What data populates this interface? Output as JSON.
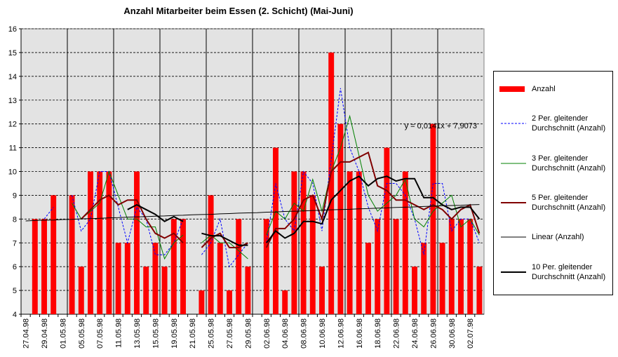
{
  "chart_data": {
    "type": "bar",
    "title": "Anzahl Mitarbeiter beim Essen (2. Schicht) (Mai-Juni)",
    "categories": [
      "27.04.98",
      null,
      "29.04.98",
      null,
      "01.05.98",
      null,
      "05.05.98",
      null,
      "07.05.98",
      null,
      "11.05.98",
      null,
      "13.05.98",
      null,
      "15.05.98",
      null,
      "19.05.98",
      null,
      "21.05.98",
      null,
      "25.05.98",
      null,
      "27.05.98",
      null,
      "29.05.98",
      null,
      "02.06.98",
      null,
      "04.06.98",
      null,
      "08.06.98",
      null,
      "10.06.98",
      null,
      "12.06.98",
      null,
      "16.06.98",
      null,
      "18.06.98",
      null,
      "22.06.98",
      null,
      "24.06.98",
      null,
      "26.06.98",
      null,
      "30.06.98",
      null,
      "02.07.98",
      null
    ],
    "ylim": [
      4,
      16
    ],
    "yticks": [
      4,
      5,
      6,
      7,
      8,
      9,
      10,
      11,
      12,
      13,
      14,
      15,
      16
    ],
    "grid": true,
    "x_grid_interval": 5,
    "annotation": "y = 0,0141x + 7,9073",
    "series": [
      {
        "name": "Anzahl",
        "type": "bar",
        "color": "#ff0000",
        "values": [
          null,
          8,
          8,
          9,
          null,
          9,
          6,
          10,
          10,
          10,
          7,
          7,
          10,
          6,
          7,
          6,
          8,
          8,
          null,
          5,
          9,
          7,
          5,
          8,
          6,
          null,
          8,
          11,
          5,
          10,
          10,
          9,
          6,
          15,
          12,
          10,
          10,
          7,
          8,
          11,
          8,
          10,
          6,
          7,
          12,
          7,
          8,
          8,
          8,
          6
        ]
      },
      {
        "name": "2 Per. gleitender Durchschnitt (Anzahl)",
        "type": "line",
        "dashed": true,
        "width": 1,
        "color": "#0000ff",
        "values": [
          null,
          null,
          8,
          8.5,
          null,
          9,
          7.5,
          8,
          10,
          10,
          8.5,
          7,
          8.5,
          8,
          6.5,
          6.5,
          7,
          8,
          null,
          6.5,
          7,
          8,
          6,
          6.5,
          7,
          null,
          7,
          9.5,
          8,
          7.5,
          10,
          9.5,
          7.5,
          10.5,
          13.5,
          11,
          10,
          8.5,
          7.5,
          9.5,
          9.5,
          9,
          8,
          6.5,
          9.5,
          9.5,
          7.5,
          8,
          8,
          7
        ]
      },
      {
        "name": "3 Per. gleitender Durchschnitt (Anzahl)",
        "type": "line",
        "dashed": false,
        "width": 1,
        "color": "#008000",
        "values": [
          null,
          null,
          null,
          8.33,
          null,
          8.67,
          8,
          8.33,
          8.67,
          10,
          9,
          8,
          8,
          7.67,
          7.67,
          6.33,
          7,
          7.33,
          null,
          7,
          7.33,
          7,
          7,
          6.67,
          6.33,
          null,
          7.33,
          8.33,
          8,
          8.67,
          8.33,
          9.67,
          8.33,
          10,
          11,
          12.33,
          10.67,
          9,
          8.33,
          8.67,
          9,
          9.67,
          8,
          7.67,
          8.33,
          8.67,
          9,
          7.67,
          8,
          7.33
        ]
      },
      {
        "name": "5 Per. gleitender Durchschnitt (Anzahl)",
        "type": "line",
        "dashed": false,
        "width": 2,
        "color": "#800000",
        "values": [
          null,
          null,
          null,
          null,
          null,
          null,
          8,
          8.4,
          8.8,
          9,
          8.6,
          8.8,
          8.8,
          8,
          7.4,
          7.2,
          7.4,
          7,
          null,
          6.8,
          7.2,
          7.4,
          6.8,
          6.8,
          7,
          null,
          6.8,
          7.6,
          7.6,
          8,
          8.8,
          9,
          8,
          10,
          10.4,
          10.4,
          10.6,
          10.8,
          9.4,
          9.2,
          8.8,
          8.8,
          8.6,
          8.4,
          8.6,
          8.4,
          8,
          8.4,
          8.6,
          7.4
        ]
      },
      {
        "name": "Linear (Anzahl)",
        "type": "line",
        "dashed": false,
        "width": 1,
        "color": "#000000",
        "values": [
          7.92,
          7.94,
          7.95,
          7.96,
          7.98,
          7.99,
          8.01,
          8.02,
          8.03,
          8.05,
          8.06,
          8.08,
          8.09,
          8.1,
          8.12,
          8.13,
          8.15,
          8.16,
          8.18,
          8.19,
          8.2,
          8.22,
          8.23,
          8.25,
          8.26,
          8.27,
          8.29,
          8.3,
          8.32,
          8.33,
          8.34,
          8.36,
          8.37,
          8.39,
          8.4,
          8.41,
          8.43,
          8.44,
          8.46,
          8.47,
          8.49,
          8.5,
          8.51,
          8.53,
          8.54,
          8.56,
          8.57,
          8.58,
          8.6,
          8.61
        ]
      },
      {
        "name": "10 Per. gleitender Durchschnitt (Anzahl)",
        "type": "line",
        "dashed": false,
        "width": 2,
        "color": "#000000",
        "values": [
          null,
          null,
          null,
          null,
          null,
          null,
          null,
          null,
          null,
          null,
          null,
          8.4,
          8.6,
          8.4,
          8.2,
          7.9,
          8.1,
          7.9,
          null,
          7.4,
          7.3,
          7.3,
          7.1,
          6.9,
          6.9,
          null,
          7,
          7.5,
          7.2,
          7.4,
          7.9,
          7.9,
          7.8,
          8.8,
          9.2,
          9.6,
          9.8,
          9.4,
          9.7,
          9.8,
          9.6,
          9.7,
          9.7,
          8.9,
          8.9,
          8.6,
          8.4,
          8.5,
          8.5,
          8
        ]
      }
    ]
  }
}
